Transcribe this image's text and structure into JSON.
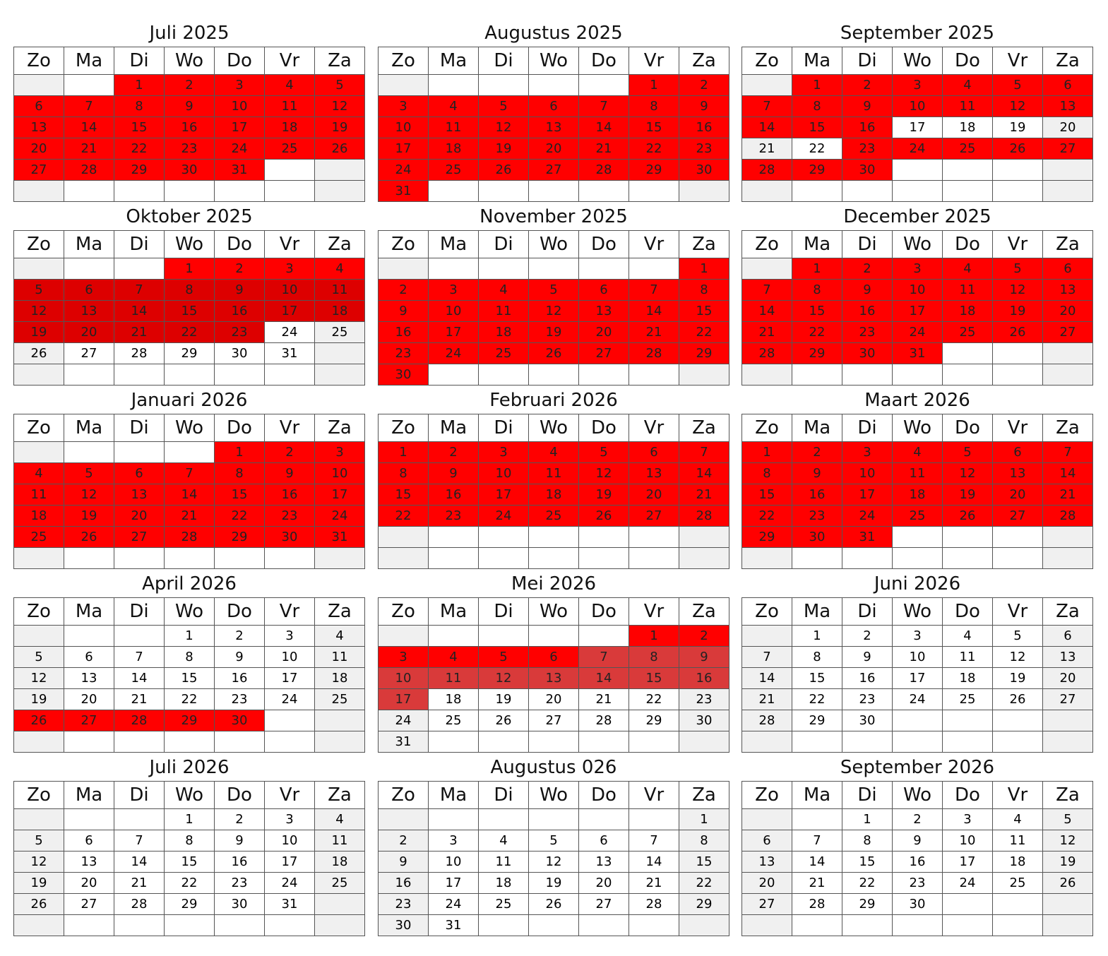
{
  "weekdays": [
    "Zo",
    "Ma",
    "Di",
    "Wo",
    "Do",
    "Vr",
    "Za"
  ],
  "colors": {
    "red": "#ff0000",
    "dark_red": "#dd0000",
    "muted_red": "#d93a3a",
    "weekend_empty": "#f0f0f0",
    "weekday_empty": "#ffffff",
    "border": "#555555"
  },
  "months": [
    {
      "title": "Juli 2025",
      "start": 2,
      "days": 31,
      "red": [
        [
          1,
          31,
          "red"
        ]
      ]
    },
    {
      "title": "Augustus 2025",
      "start": 5,
      "days": 31,
      "red": [
        [
          1,
          31,
          "red"
        ]
      ]
    },
    {
      "title": "September 2025",
      "start": 1,
      "days": 30,
      "red": [
        [
          1,
          16,
          "red"
        ],
        [
          23,
          30,
          "red"
        ]
      ]
    },
    {
      "title": "Oktober 2025",
      "start": 3,
      "days": 31,
      "red": [
        [
          1,
          4,
          "red"
        ],
        [
          5,
          23,
          "dark"
        ]
      ]
    },
    {
      "title": "November 2025",
      "start": 6,
      "days": 30,
      "red": [
        [
          1,
          30,
          "red"
        ]
      ]
    },
    {
      "title": "December 2025",
      "start": 1,
      "days": 31,
      "red": [
        [
          1,
          31,
          "red"
        ]
      ]
    },
    {
      "title": "Januari 2026",
      "start": 4,
      "days": 31,
      "red": [
        [
          1,
          31,
          "red"
        ]
      ]
    },
    {
      "title": "Februari 2026",
      "start": 0,
      "days": 28,
      "red": [
        [
          1,
          28,
          "red"
        ]
      ]
    },
    {
      "title": "Maart 2026",
      "start": 0,
      "days": 31,
      "red": [
        [
          1,
          31,
          "red"
        ]
      ]
    },
    {
      "title": "April 2026",
      "start": 3,
      "days": 30,
      "red": [
        [
          26,
          30,
          "red"
        ]
      ]
    },
    {
      "title": "Mei 2026",
      "start": 5,
      "days": 31,
      "red": [
        [
          1,
          6,
          "red"
        ],
        [
          7,
          17,
          "muted"
        ]
      ]
    },
    {
      "title": "Juni 2026",
      "start": 1,
      "days": 30,
      "red": []
    },
    {
      "title": "Juli 2026",
      "start": 3,
      "days": 31,
      "red": []
    },
    {
      "title": "Augustus 026",
      "start": 6,
      "days": 31,
      "red": []
    },
    {
      "title": "September 2026",
      "start": 2,
      "days": 30,
      "red": []
    }
  ]
}
